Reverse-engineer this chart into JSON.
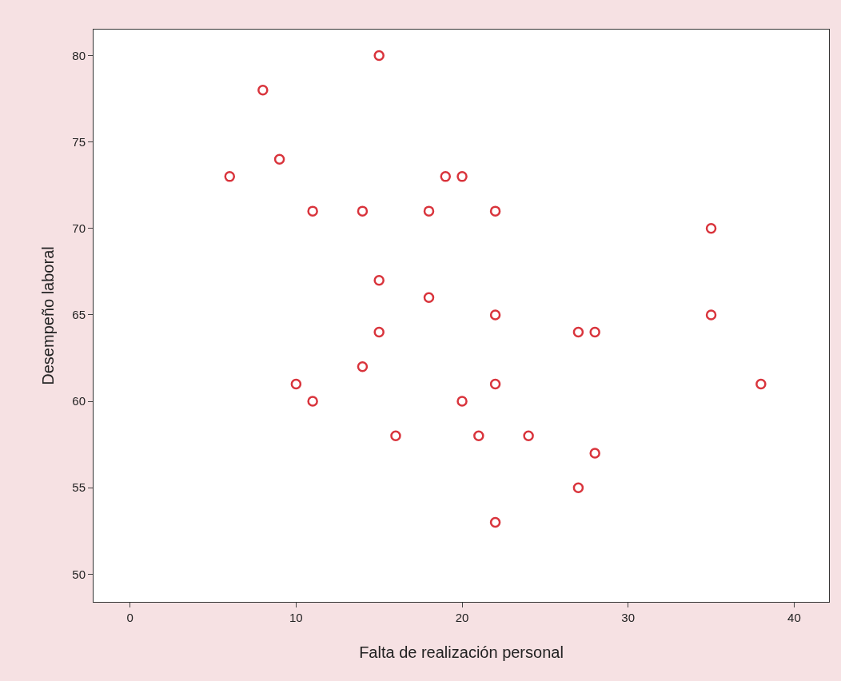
{
  "chart_data": {
    "type": "scatter",
    "xlabel": "Falta de realización personal",
    "ylabel": "Desempeño laboral",
    "x": [
      15,
      8,
      9,
      6,
      19,
      20,
      11,
      14,
      18,
      22,
      35,
      15,
      18,
      22,
      35,
      15,
      27,
      28,
      14,
      10,
      22,
      38,
      11,
      20,
      16,
      21,
      24,
      28,
      27,
      22
    ],
    "values": [
      80,
      78,
      74,
      73,
      73,
      73,
      71,
      71,
      71,
      71,
      70,
      67,
      66,
      65,
      65,
      64,
      64,
      64,
      62,
      61,
      61,
      61,
      60,
      60,
      58,
      58,
      58,
      57,
      55,
      53
    ],
    "color": "#d9343c",
    "marker": "circle",
    "xlim": [
      -2.2,
      42.1
    ],
    "xticks": [
      0,
      10,
      20,
      30,
      40
    ],
    "ylim": [
      48.4,
      81.5
    ],
    "yticks": [
      50,
      55,
      60,
      65,
      70,
      75,
      80
    ],
    "grid": false,
    "legend": false
  }
}
